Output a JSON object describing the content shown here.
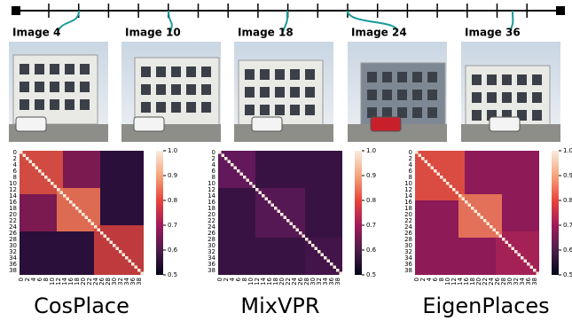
{
  "timeline": {
    "images": [
      {
        "label": "Image 4"
      },
      {
        "label": "Image 10"
      },
      {
        "label": "Image 18"
      },
      {
        "label": "Image 24"
      },
      {
        "label": "Image 36"
      }
    ]
  },
  "heatmaps": [
    {
      "title": "CosPlace",
      "ticks": [
        0,
        2,
        4,
        6,
        8,
        10,
        12,
        14,
        16,
        18,
        20,
        22,
        24,
        26,
        28,
        30,
        32,
        34,
        36,
        38
      ],
      "colorbar_ticks": [
        "1.0",
        "0.9",
        "0.8",
        "0.7",
        "0.6",
        "0.5"
      ]
    },
    {
      "title": "MixVPR",
      "ticks": [
        0,
        2,
        4,
        6,
        8,
        10,
        12,
        14,
        16,
        18,
        20,
        22,
        24,
        26,
        28,
        30,
        32,
        34,
        36,
        38
      ],
      "colorbar_ticks": [
        "1.0",
        "0.9",
        "0.8",
        "0.7",
        "0.6",
        "0.5"
      ]
    },
    {
      "title": "EigenPlaces",
      "ticks": [
        0,
        2,
        4,
        6,
        8,
        10,
        12,
        14,
        16,
        18,
        20,
        22,
        24,
        26,
        28,
        30,
        32,
        34,
        36,
        38
      ],
      "colorbar_ticks": [
        "1.0",
        "0.9",
        "0.8",
        "0.7",
        "0.6",
        "0.5"
      ]
    }
  ]
}
